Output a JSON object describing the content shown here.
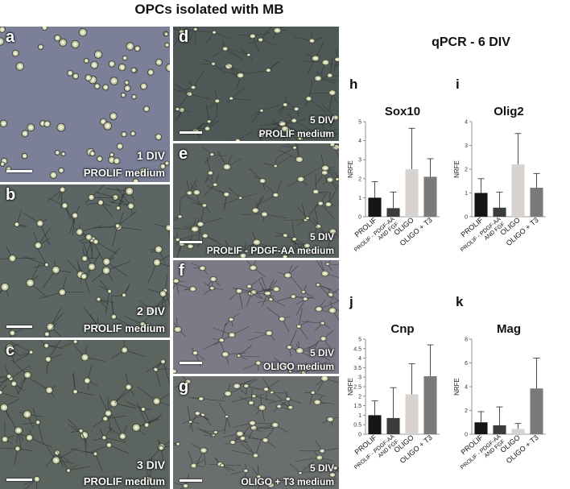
{
  "header": {
    "title": "OPCs isolated with MB",
    "qpcr_title": "qPCR - 6 DIV"
  },
  "micrographs": [
    {
      "letter": "a",
      "div": "1 DIV",
      "medium": "PROLIF medium"
    },
    {
      "letter": "b",
      "div": "2 DIV",
      "medium": "PROLIF medium"
    },
    {
      "letter": "c",
      "div": "3 DIV",
      "medium": "PROLIF medium"
    },
    {
      "letter": "d",
      "div": "5 DIV",
      "medium": "PROLIF medium"
    },
    {
      "letter": "e",
      "div": "5 DIV",
      "medium": "PROLIF - PDGF-AA medium"
    },
    {
      "letter": "f",
      "div": "5 DIV",
      "medium": "OLIGO medium"
    },
    {
      "letter": "g",
      "div": "5 DIV",
      "medium": "OLIGO + T3 medium"
    }
  ],
  "colors": {
    "bar_colors": [
      "#151515",
      "#3a3d3c",
      "#d8d3cf",
      "#7a7b78"
    ],
    "micro_bg": [
      "#7b7f98",
      "#5b6563",
      "#5c6460",
      "#4e5856",
      "#5b6361",
      "#7b7a86",
      "#6b6e6e"
    ]
  },
  "chart_data": [
    {
      "panel": "h",
      "type": "bar",
      "title": "Sox10",
      "ylabel": "NRFE",
      "categories": [
        "PROLIF",
        "PROLIF - PDGF-AA AND FGF",
        "OLIGO",
        "OLIGO + T3"
      ],
      "category_lines": [
        [
          "PROLIF"
        ],
        [
          "PROLIF - PDGF-AA",
          "AND FGF"
        ],
        [
          "OLIGO"
        ],
        [
          "OLIGO + T3"
        ]
      ],
      "values": [
        1.0,
        0.45,
        2.5,
        2.1
      ],
      "errors": [
        0.85,
        0.85,
        2.15,
        0.95
      ],
      "ylim": [
        0,
        5
      ],
      "yticks": [
        0,
        1,
        2,
        3,
        4,
        5
      ]
    },
    {
      "panel": "i",
      "type": "bar",
      "title": "Olig2",
      "ylabel": "NRFE",
      "categories": [
        "PROLIF",
        "PROLIF - PDGF-AA AND FGF",
        "OLIGO",
        "OLIGO + T3"
      ],
      "category_lines": [
        [
          "PROLIF"
        ],
        [
          "PROLIF - PDGF-AA",
          "AND FGF"
        ],
        [
          "OLIGO"
        ],
        [
          "OLIGO + T3"
        ]
      ],
      "values": [
        1.0,
        0.38,
        2.2,
        1.22
      ],
      "errors": [
        0.6,
        0.65,
        1.3,
        0.6
      ],
      "ylim": [
        0,
        4
      ],
      "yticks": [
        0,
        1,
        2,
        3,
        4
      ]
    },
    {
      "panel": "j",
      "type": "bar",
      "title": "Cnp",
      "ylabel": "NRFE",
      "categories": [
        "PROLIF",
        "PROLIF - PDGF-AA AND FGF",
        "OLIGO",
        "OLIGO + T3"
      ],
      "category_lines": [
        [
          "PROLIF"
        ],
        [
          "PROLIF - PDGF-AA",
          "AND FGF"
        ],
        [
          "OLIGO"
        ],
        [
          "OLIGO + T3"
        ]
      ],
      "values": [
        1.0,
        0.85,
        2.1,
        3.05
      ],
      "errors": [
        0.75,
        1.6,
        1.6,
        1.65
      ],
      "ylim": [
        0,
        5
      ],
      "yticks": [
        0,
        0.5,
        1,
        1.5,
        2,
        2.5,
        3,
        3.5,
        4,
        4.5,
        5
      ]
    },
    {
      "panel": "k",
      "type": "bar",
      "title": "Mag",
      "ylabel": "NRFE",
      "categories": [
        "PROLIF",
        "PROLIF - PDGF-AA AND FGF",
        "OLIGO",
        "OLIGO + T3"
      ],
      "category_lines": [
        [
          "PROLIF"
        ],
        [
          "PROLIF - PDGF-AA",
          "AND FGF"
        ],
        [
          "OLIGO"
        ],
        [
          "OLIGO + T3"
        ]
      ],
      "values": [
        1.0,
        0.75,
        0.45,
        3.85
      ],
      "errors": [
        0.9,
        1.55,
        0.45,
        2.55
      ],
      "ylim": [
        0,
        8
      ],
      "yticks": [
        0,
        2,
        4,
        6,
        8
      ]
    }
  ]
}
